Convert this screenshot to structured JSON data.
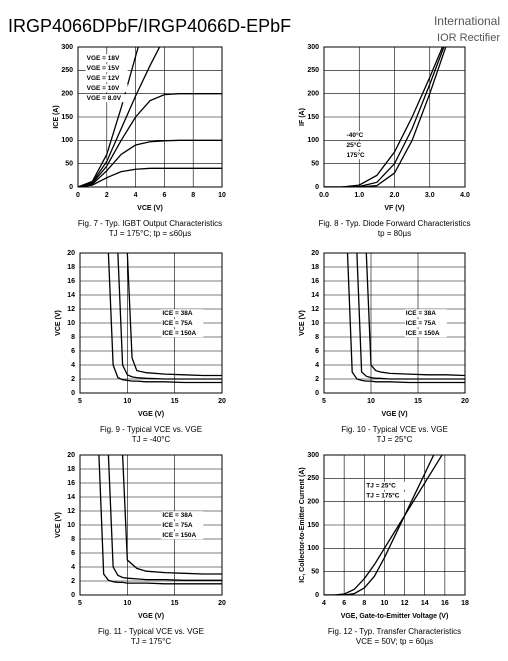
{
  "header": {
    "title": "IRGP4066DPbF/IRGP4066D-EPbF",
    "brand": [
      "International",
      "IOR Rectifier"
    ]
  },
  "chart_data": [
    {
      "type": "line",
      "title": "Fig. 7 - Typ. IGBT Output Characteristics",
      "subtitle": "TJ = 175°C; tp = ≤60µs",
      "xlabel": "VCE (V)",
      "ylabel": "ICE (A)",
      "x": [
        0,
        1,
        2,
        3,
        4,
        5,
        6,
        7,
        8,
        9,
        10
      ],
      "series": [
        {
          "name": "VGE = 18V",
          "color": "#000000",
          "values": [
            0,
            12,
            70,
            170,
            280,
            390,
            null,
            null,
            null,
            null,
            null
          ]
        },
        {
          "name": "VGE = 15V",
          "color": "#000000",
          "values": [
            0,
            10,
            55,
            125,
            195,
            260,
            320,
            null,
            null,
            null,
            null
          ]
        },
        {
          "name": "VGE = 12V",
          "color": "#000000",
          "values": [
            0,
            8,
            45,
            100,
            150,
            185,
            198,
            200,
            200,
            200,
            200
          ]
        },
        {
          "name": "VGE = 10V",
          "color": "#000000",
          "values": [
            0,
            6,
            35,
            70,
            90,
            97,
            99,
            100,
            100,
            100,
            100
          ]
        },
        {
          "name": "VGE = 8.0V",
          "color": "#000000",
          "values": [
            0,
            4,
            20,
            33,
            38,
            40,
            40,
            40,
            40,
            40,
            40
          ]
        }
      ],
      "xlim": [
        0,
        10
      ],
      "ylim": [
        0,
        300
      ],
      "xticks": [
        0,
        2,
        4,
        6,
        8,
        10
      ],
      "yticks": [
        0,
        50,
        100,
        150,
        200,
        250,
        300
      ],
      "grid": true,
      "legend": "upper left"
    },
    {
      "type": "line",
      "title": "Fig. 8 - Typ. Diode Forward Characteristics",
      "subtitle": "tp = 80µs",
      "xlabel": "VF (V)",
      "ylabel": "IF (A)",
      "x": [
        0,
        0.5,
        1,
        1.5,
        2,
        2.5,
        3,
        3.5,
        4
      ],
      "series": [
        {
          "name": "-40°C",
          "color": "#000000",
          "values": [
            0,
            0,
            0,
            3,
            30,
            100,
            200,
            310,
            null
          ]
        },
        {
          "name": "25°C",
          "color": "#000000",
          "values": [
            0,
            0,
            1,
            10,
            50,
            125,
            220,
            320,
            null
          ]
        },
        {
          "name": "175°C",
          "color": "#000000",
          "values": [
            0,
            0,
            4,
            25,
            75,
            150,
            235,
            325,
            null
          ]
        }
      ],
      "xlim": [
        0,
        4
      ],
      "ylim": [
        0,
        300
      ],
      "xticks": [
        {
          "value": 0,
          "label": "0.0"
        },
        {
          "value": 1,
          "label": "1.0"
        },
        {
          "value": 2,
          "label": "2.0"
        },
        {
          "value": 3,
          "label": "3.0"
        },
        {
          "value": 4,
          "label": "4.0"
        }
      ],
      "yticks": [
        0,
        50,
        100,
        150,
        200,
        250,
        300
      ],
      "grid": true,
      "legend": "center left"
    },
    {
      "type": "line",
      "title": "Fig. 9 - Typical VCE vs. VGE",
      "subtitle": "TJ = -40°C",
      "xlabel": "VGE (V)",
      "ylabel": "VCE (V)",
      "x": [
        7.8,
        8,
        8.5,
        9,
        9.5,
        10,
        10.5,
        11,
        12,
        14,
        16,
        18,
        20
      ],
      "series": [
        {
          "name": "ICE = 38A",
          "color": "#000000",
          "values": [
            22,
            20,
            4,
            2.2,
            1.9,
            1.8,
            1.7,
            1.7,
            1.6,
            1.6,
            1.5,
            1.5,
            1.5
          ]
        },
        {
          "name": "ICE = 75A",
          "color": "#000000",
          "values": [
            null,
            null,
            22,
            20,
            4,
            2.6,
            2.3,
            2.2,
            2.1,
            2,
            2,
            2,
            2
          ]
        },
        {
          "name": "ICE = 150A",
          "color": "#000000",
          "values": [
            null,
            null,
            null,
            null,
            22,
            20,
            5,
            3.2,
            2.9,
            2.7,
            2.6,
            2.5,
            2.5
          ]
        }
      ],
      "xlim": [
        5,
        20
      ],
      "ylim": [
        0,
        20
      ],
      "xticks": [
        5,
        10,
        15,
        20
      ],
      "yticks": [
        0,
        2,
        4,
        6,
        8,
        10,
        12,
        14,
        16,
        18,
        20
      ],
      "grid": true,
      "legend": "center right"
    },
    {
      "type": "line",
      "title": "Fig. 10 - Typical VCE vs. VGE",
      "subtitle": "TJ = 25°C",
      "xlabel": "VGE (V)",
      "ylabel": "VCE (V)",
      "x": [
        7.5,
        8,
        8.5,
        9,
        9.5,
        10,
        10.5,
        11,
        12,
        14,
        16,
        18,
        20
      ],
      "series": [
        {
          "name": "ICE = 38A",
          "color": "#000000",
          "values": [
            20,
            3,
            2,
            1.8,
            1.7,
            1.7,
            1.6,
            1.6,
            1.6,
            1.5,
            1.5,
            1.5,
            1.5
          ]
        },
        {
          "name": "ICE = 75A",
          "color": "#000000",
          "values": [
            null,
            22,
            20,
            3,
            2.4,
            2.2,
            2.1,
            2.1,
            2,
            2,
            2,
            2,
            2
          ]
        },
        {
          "name": "ICE = 150A",
          "color": "#000000",
          "values": [
            null,
            null,
            null,
            22,
            20,
            4,
            3.2,
            3,
            2.8,
            2.7,
            2.6,
            2.6,
            2.5
          ]
        }
      ],
      "xlim": [
        5,
        20
      ],
      "ylim": [
        0,
        20
      ],
      "xticks": [
        5,
        10,
        15,
        20
      ],
      "yticks": [
        0,
        2,
        4,
        6,
        8,
        10,
        12,
        14,
        16,
        18,
        20
      ],
      "grid": true,
      "legend": "center right"
    },
    {
      "type": "line",
      "title": "Fig. 11 - Typical VCE vs. VGE",
      "subtitle": "TJ = 175°C",
      "xlabel": "VGE (V)",
      "ylabel": "VCE (V)",
      "x": [
        6.8,
        7,
        7.5,
        8,
        8.5,
        9,
        9.5,
        10,
        11,
        12,
        14,
        16,
        18,
        20
      ],
      "series": [
        {
          "name": "ICE = 38A",
          "color": "#000000",
          "values": [
            22,
            20,
            3,
            2.1,
            1.9,
            1.8,
            1.8,
            1.7,
            1.7,
            1.7,
            1.6,
            1.6,
            1.6,
            1.6
          ]
        },
        {
          "name": "ICE = 75A",
          "color": "#000000",
          "values": [
            null,
            null,
            22,
            20,
            4,
            2.8,
            2.5,
            2.4,
            2.3,
            2.2,
            2.2,
            2.1,
            2.1,
            2.1
          ]
        },
        {
          "name": "ICE = 150A",
          "color": "#000000",
          "values": [
            null,
            null,
            null,
            null,
            null,
            22,
            20,
            5,
            3.8,
            3.4,
            3.2,
            3.1,
            3,
            3
          ]
        }
      ],
      "xlim": [
        5,
        20
      ],
      "ylim": [
        0,
        20
      ],
      "xticks": [
        5,
        10,
        15,
        20
      ],
      "yticks": [
        0,
        2,
        4,
        6,
        8,
        10,
        12,
        14,
        16,
        18,
        20
      ],
      "grid": true,
      "legend": "center right"
    },
    {
      "type": "line",
      "title": "Fig. 12 - Typ. Transfer Characteristics",
      "subtitle": "VCE = 50V; tp = 60µs",
      "xlabel": "VGE, Gate-to-Emitter Voltage (V)",
      "ylabel": "IC, Collector-to-Emitter Current (A)",
      "x": [
        4,
        5,
        6,
        7,
        8,
        9,
        10,
        11,
        12,
        13,
        14,
        15,
        16,
        17,
        18
      ],
      "series": [
        {
          "name": "TJ = 25°C",
          "color": "#000000",
          "values": [
            0,
            0,
            0,
            3,
            15,
            40,
            80,
            125,
            170,
            215,
            260,
            305,
            null,
            null,
            null
          ]
        },
        {
          "name": "TJ = 175°C",
          "color": "#000000",
          "values": [
            0,
            0,
            2,
            12,
            35,
            65,
            100,
            135,
            170,
            205,
            240,
            275,
            310,
            null,
            null
          ]
        }
      ],
      "xlim": [
        4,
        18
      ],
      "ylim": [
        0,
        300
      ],
      "xticks": [
        4,
        6,
        8,
        10,
        12,
        14,
        16,
        18
      ],
      "yticks": [
        0,
        50,
        100,
        150,
        200,
        250,
        300
      ],
      "grid": true,
      "legend": "upper center"
    }
  ]
}
